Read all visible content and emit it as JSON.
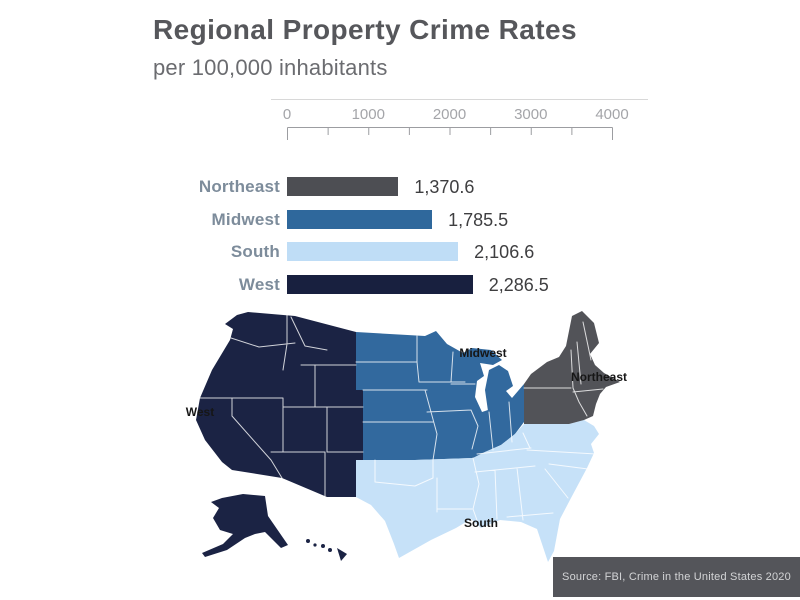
{
  "title": "Regional Property Crime Rates",
  "subtitle": "per 100,000 inhabitants",
  "chart_data": {
    "type": "bar",
    "orientation": "horizontal",
    "title": "Regional Property Crime Rates",
    "subtitle": "per 100,000 inhabitants",
    "categories": [
      "Northeast",
      "Midwest",
      "South",
      "West"
    ],
    "values": [
      1370.6,
      1785.5,
      2106.6,
      2286.5
    ],
    "value_labels": [
      "1,370.6",
      "1,785.5",
      "2,106.6",
      "2,286.5"
    ],
    "x_ticks": [
      0,
      1000,
      2000,
      3000,
      4000
    ],
    "xlim": [
      0,
      4000
    ],
    "grid": false,
    "value_label_position": "right-of-bar",
    "bar_colors": [
      "#4D4E53",
      "#2F689C",
      "#BFDDF6",
      "#18203F"
    ]
  },
  "map": {
    "labels": {
      "west": "West",
      "midwest": "Midwest",
      "south": "South",
      "northeast": "Northeast"
    },
    "region_colors": {
      "west": "#1B2344",
      "midwest": "#32699E",
      "south": "#C6E1F8",
      "northeast": "#525358"
    }
  },
  "source": {
    "text": "Source: FBI, Crime in the United States 2020"
  }
}
